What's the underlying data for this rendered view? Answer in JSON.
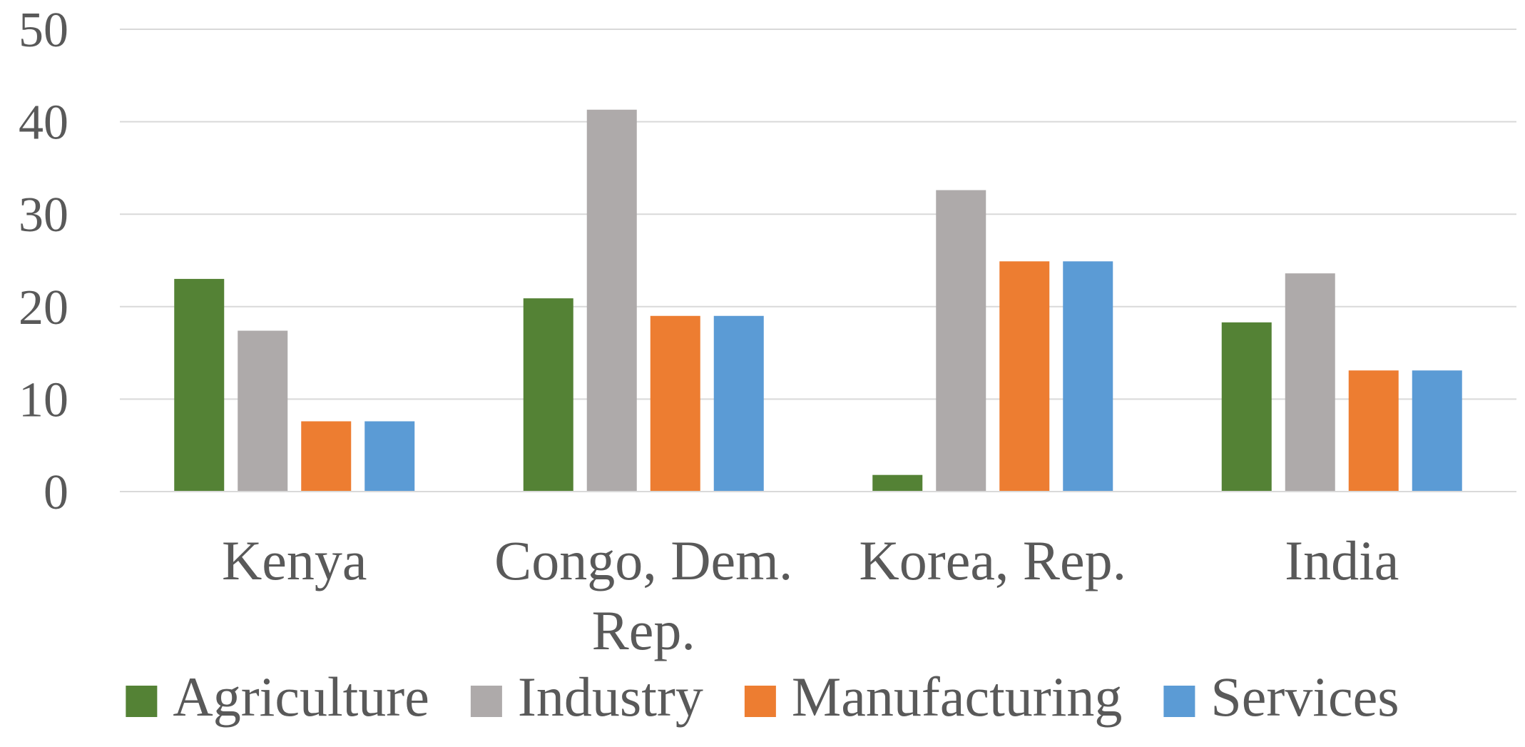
{
  "chart_data": {
    "type": "bar",
    "title": "",
    "xlabel": "",
    "ylabel": "",
    "ylim": [
      0,
      50
    ],
    "yticks": [
      0,
      10,
      20,
      30,
      40,
      50
    ],
    "grid": true,
    "legend_position": "bottom",
    "categories": [
      [
        "Kenya"
      ],
      [
        "Congo, Dem.",
        "Rep."
      ],
      [
        "Korea, Rep."
      ],
      [
        "India"
      ]
    ],
    "series": [
      {
        "name": "Agriculture",
        "color": "#548235",
        "values": [
          23.0,
          20.9,
          1.8,
          18.3
        ]
      },
      {
        "name": "Industry",
        "color": "#aeaaaa",
        "values": [
          17.4,
          41.3,
          32.6,
          23.6
        ]
      },
      {
        "name": "Manufacturing",
        "color": "#ed7d31",
        "values": [
          7.6,
          19.0,
          24.9,
          13.1
        ]
      },
      {
        "name": "Services",
        "color": "#5b9bd5",
        "values": [
          7.6,
          19.0,
          24.9,
          13.1
        ]
      }
    ]
  }
}
